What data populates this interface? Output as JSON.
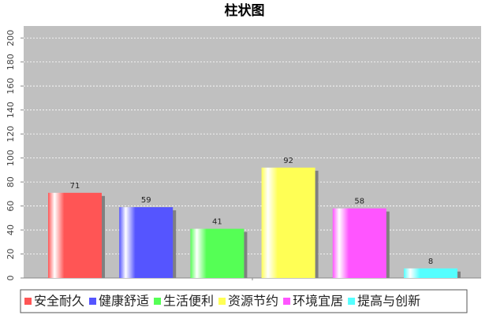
{
  "chart_data": {
    "type": "bar",
    "title": "柱状图",
    "categories": [
      "安全耐久",
      "健康舒适",
      "生活便利",
      "资源节约",
      "环境宜居",
      "提高与创新"
    ],
    "values": [
      71,
      59,
      41,
      92,
      58,
      8
    ],
    "colors": [
      "#ff5555",
      "#5555ff",
      "#55ff55",
      "#ffff55",
      "#ff55ff",
      "#55ffff"
    ],
    "ylim": [
      0,
      210
    ],
    "yticks": [
      0,
      20,
      40,
      60,
      80,
      100,
      120,
      140,
      160,
      180,
      200
    ],
    "grid": true
  }
}
